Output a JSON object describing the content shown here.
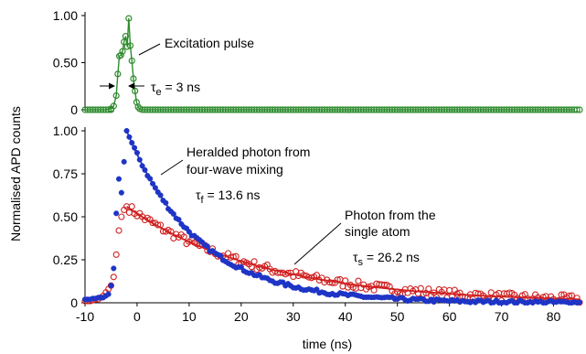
{
  "chart_data": [
    {
      "type": "scatter",
      "panel": "top",
      "ylim": [
        0,
        1.0
      ],
      "yticks": [
        "1.00",
        "0.50",
        "0"
      ],
      "annotations": {
        "pulse_label": "Excitation pulse",
        "tau_e_sym": "τ",
        "tau_e_sub": "e",
        "tau_e_val": " = 3 ns"
      },
      "series": [
        {
          "marker": "open-circle",
          "color": "#2e8b2e",
          "connected": true,
          "x": [
            -10,
            -9,
            -8,
            -7,
            -6,
            -5,
            -4.5,
            -4,
            -3.7,
            -3.4,
            -3.1,
            -2.8,
            -2.5,
            -2.2,
            -1.9,
            -1.6,
            -1.3,
            -1.0,
            -0.7,
            -0.4,
            -0.1,
            0.2,
            0.5,
            1,
            1.5,
            2,
            3,
            4,
            5,
            6,
            7,
            8,
            9,
            10,
            12,
            14,
            16,
            18,
            20,
            22,
            24,
            26,
            28,
            30,
            32,
            34,
            36,
            38,
            40,
            42,
            44,
            46,
            48,
            50,
            52,
            54,
            56,
            58,
            60,
            62,
            64,
            66,
            68,
            70,
            72,
            74,
            76,
            78,
            80,
            82,
            84
          ],
          "y": [
            0,
            0,
            0,
            0,
            0,
            0.01,
            0.04,
            0.15,
            0.38,
            0.57,
            0.58,
            0.62,
            0.72,
            0.78,
            0.67,
            0.97,
            0.68,
            0.52,
            0.33,
            0.2,
            0.08,
            0.03,
            0.01,
            0,
            0,
            0,
            0,
            0,
            0,
            0,
            0,
            0,
            0,
            0,
            0,
            0,
            0,
            0,
            0,
            0,
            0,
            0,
            0,
            0,
            0,
            0,
            0,
            0,
            0,
            0,
            0,
            0,
            0,
            0,
            0,
            0,
            0,
            0,
            0,
            0,
            0,
            0,
            0,
            0,
            0,
            0,
            0,
            0,
            0,
            0,
            0
          ]
        }
      ]
    },
    {
      "type": "scatter",
      "panel": "bottom",
      "xlabel": "time (ns)",
      "ylabel": "Normalised APD counts",
      "xlim": [
        -10,
        85
      ],
      "ylim": [
        0,
        1.0
      ],
      "xticks": [
        -10,
        0,
        10,
        20,
        30,
        40,
        50,
        60,
        70,
        80
      ],
      "yticks": [
        "1.00",
        "0.75",
        "0.50",
        "0.25",
        "0"
      ],
      "annotations": {
        "heralded_line1": "Heralded photon from",
        "heralded_line2": "four-wave mixing",
        "tau_f_sym": "τ",
        "tau_f_sub": "f",
        "tau_f_val": " = 13.6 ns",
        "atom_line1": "Photon from the",
        "atom_line2": "single atom",
        "tau_s_sym": "τ",
        "tau_s_sub": "s",
        "tau_s_val": " = 26.2 ns"
      },
      "series": [
        {
          "id": "fwm",
          "marker": "filled-circle",
          "color": "#1f35c6",
          "decay_model": {
            "amplitude": 1.0,
            "peak_time": -2,
            "tau": 13.6
          },
          "x": [
            -10,
            -9.5,
            -9,
            -8.5,
            -8,
            -7.5,
            -7,
            -6.5,
            -6,
            -5.5,
            -5,
            -4.5,
            -4,
            -3.5,
            -3,
            -2.5
          ],
          "y": [
            0.02,
            0.02,
            0.02,
            0.025,
            0.025,
            0.03,
            0.03,
            0.03,
            0.04,
            0.05,
            0.1,
            0.2,
            0.52,
            0.72,
            0.64,
            0.82
          ]
        },
        {
          "id": "atom",
          "marker": "open-circle",
          "color": "#d02020",
          "decay_model": {
            "amplitude": 0.56,
            "peak_time": -2,
            "tau": 26.2
          },
          "x": [
            -10,
            -9.5,
            -9,
            -8.5,
            -8,
            -7.5,
            -7,
            -6.5,
            -6,
            -5.5,
            -5,
            -4.5,
            -4,
            -3.5,
            -3,
            -2.5
          ],
          "y": [
            0.01,
            0.01,
            0.01,
            0.015,
            0.02,
            0.02,
            0.03,
            0.04,
            0.06,
            0.08,
            0.1,
            0.15,
            0.28,
            0.42,
            0.5,
            0.54
          ]
        }
      ]
    }
  ]
}
